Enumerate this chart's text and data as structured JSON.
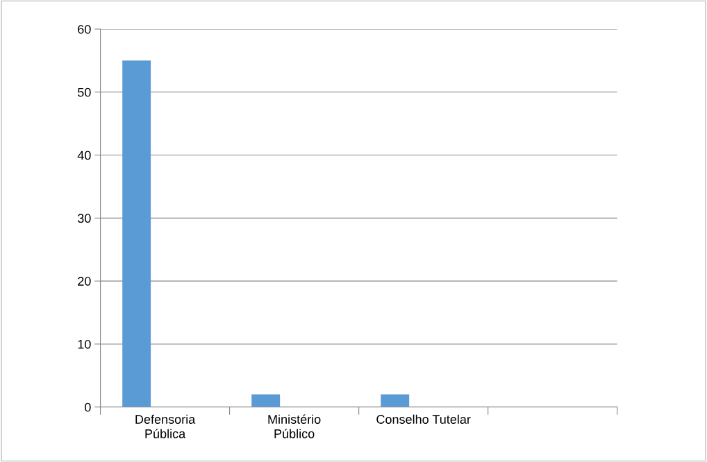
{
  "chart_data": {
    "type": "bar",
    "categories": [
      "Defensoria\nPública",
      "Ministério\nPúblico",
      "Conselho Tutelar",
      null
    ],
    "values": [
      55,
      2,
      2,
      null
    ],
    "color": "#5b9bd5",
    "ylim": [
      0,
      60
    ],
    "yticks": [
      0,
      10,
      20,
      30,
      40,
      50,
      60
    ],
    "grid": "y"
  }
}
